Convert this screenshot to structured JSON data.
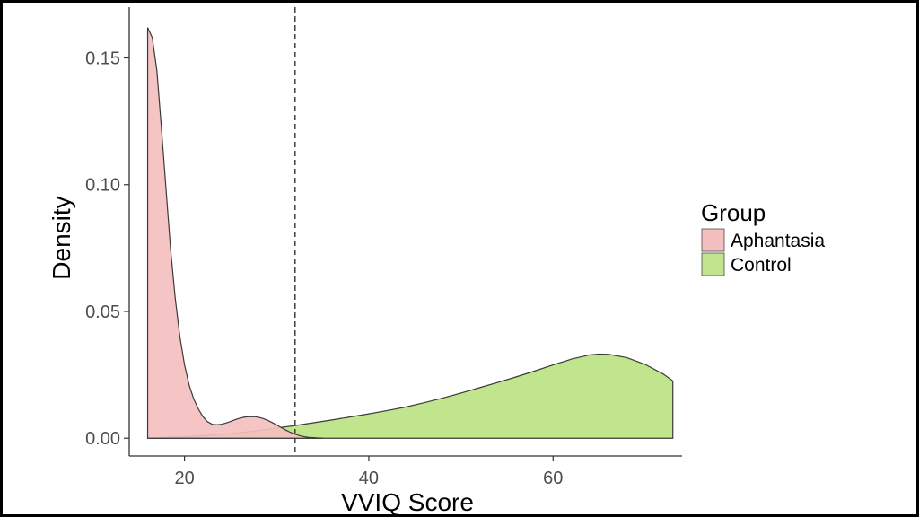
{
  "chart_data": {
    "type": "area",
    "title": "",
    "xlabel": "VVIQ Score",
    "ylabel": "Density",
    "xlim": [
      14,
      74
    ],
    "ylim": [
      -0.007,
      0.17
    ],
    "x_ticks": [
      20,
      40,
      60
    ],
    "x_tick_labels": [
      "20",
      "40",
      "60"
    ],
    "y_ticks": [
      0,
      0.05,
      0.1,
      0.15
    ],
    "y_tick_labels": [
      "0.00",
      "0.05",
      "0.10",
      "0.15"
    ],
    "grid": false,
    "reference_line": {
      "x": 32,
      "style": "dashed"
    },
    "legend": {
      "title": "Group",
      "placement": "right"
    },
    "series": [
      {
        "name": "Aphantasia",
        "color": "#f4bfbf",
        "x": [
          16,
          16.5,
          17,
          17.5,
          18,
          18.5,
          19,
          19.5,
          20,
          20.5,
          21,
          21.5,
          22,
          22.5,
          23,
          23.5,
          24,
          24.5,
          25,
          25.5,
          26,
          26.5,
          27,
          27.5,
          28,
          28.5,
          29,
          29.5,
          30,
          30.5,
          31,
          31.5,
          32,
          32.5,
          33,
          33.5,
          34,
          34.5,
          35
        ],
        "values": [
          0.162,
          0.158,
          0.145,
          0.122,
          0.098,
          0.074,
          0.055,
          0.04,
          0.029,
          0.021,
          0.0155,
          0.0115,
          0.0085,
          0.0065,
          0.0055,
          0.0053,
          0.0055,
          0.006,
          0.0066,
          0.0073,
          0.0079,
          0.0083,
          0.0085,
          0.0085,
          0.0083,
          0.0078,
          0.0071,
          0.0062,
          0.0052,
          0.0042,
          0.0032,
          0.0023,
          0.0016,
          0.001,
          0.0006,
          0.0003,
          0.0002,
          0.0001,
          0.0
        ]
      },
      {
        "name": "Control",
        "color": "#c1e58c",
        "x": [
          16,
          18,
          20,
          22,
          24,
          26,
          28,
          30,
          32,
          34,
          36,
          38,
          40,
          42,
          44,
          46,
          48,
          50,
          52,
          54,
          56,
          58,
          60,
          62,
          64,
          65,
          66,
          68,
          70,
          72,
          73
        ],
        "values": [
          0.0,
          0.0003,
          0.0006,
          0.001,
          0.0015,
          0.0022,
          0.003,
          0.004,
          0.005,
          0.0061,
          0.0072,
          0.0084,
          0.0096,
          0.0109,
          0.0123,
          0.014,
          0.0158,
          0.0178,
          0.0199,
          0.022,
          0.0242,
          0.0265,
          0.0289,
          0.0312,
          0.0329,
          0.0332,
          0.0331,
          0.0318,
          0.0291,
          0.0252,
          0.0226
        ]
      }
    ]
  }
}
